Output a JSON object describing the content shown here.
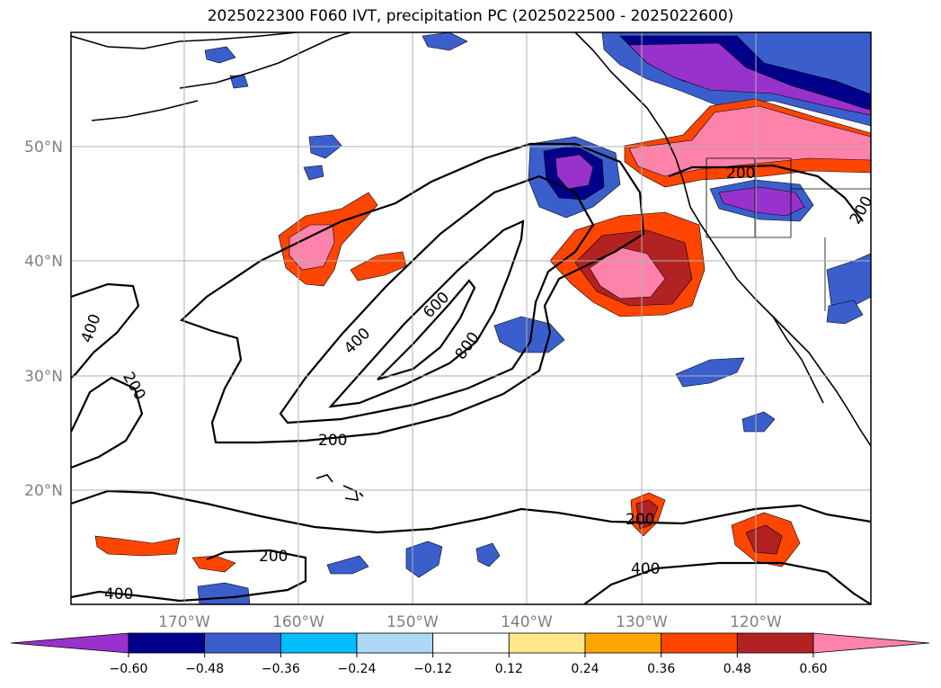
{
  "title": "2025022300 F060 IVT, precipitation PC (2025022500 - 2025022600)",
  "map": {
    "lat_labels": [
      "50°N",
      "40°N",
      "30°N",
      "20°N"
    ],
    "lon_labels": [
      "170°W",
      "160°W",
      "150°W",
      "140°W",
      "130°W",
      "120°W"
    ],
    "ivt_contour_labels": [
      "400",
      "200",
      "400",
      "600",
      "800",
      "200",
      "200",
      "200",
      "400",
      "200",
      "200",
      "400"
    ]
  },
  "colorbar": {
    "ticks": [
      "−0.60",
      "−0.48",
      "−0.36",
      "−0.24",
      "−0.12",
      "0.12",
      "0.24",
      "0.36",
      "0.48",
      "0.60"
    ],
    "colors": [
      "#9932cc",
      "#00008b",
      "#3a5fcd",
      "#00bfff",
      "#add8f6",
      "#ffffff",
      "#ffe88a",
      "#ffa500",
      "#ff4500",
      "#b22222",
      "#ff82ab"
    ]
  }
}
